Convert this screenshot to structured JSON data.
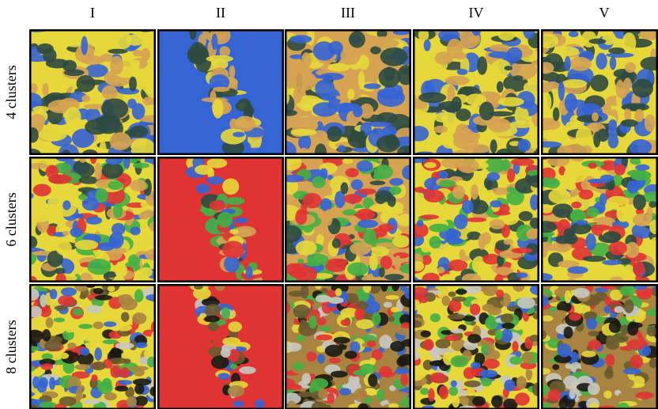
{
  "columns": [
    "I",
    "II",
    "III",
    "IV",
    "V"
  ],
  "rows": [
    "4 clusters",
    "6 clusters",
    "8 clusters"
  ]
}
